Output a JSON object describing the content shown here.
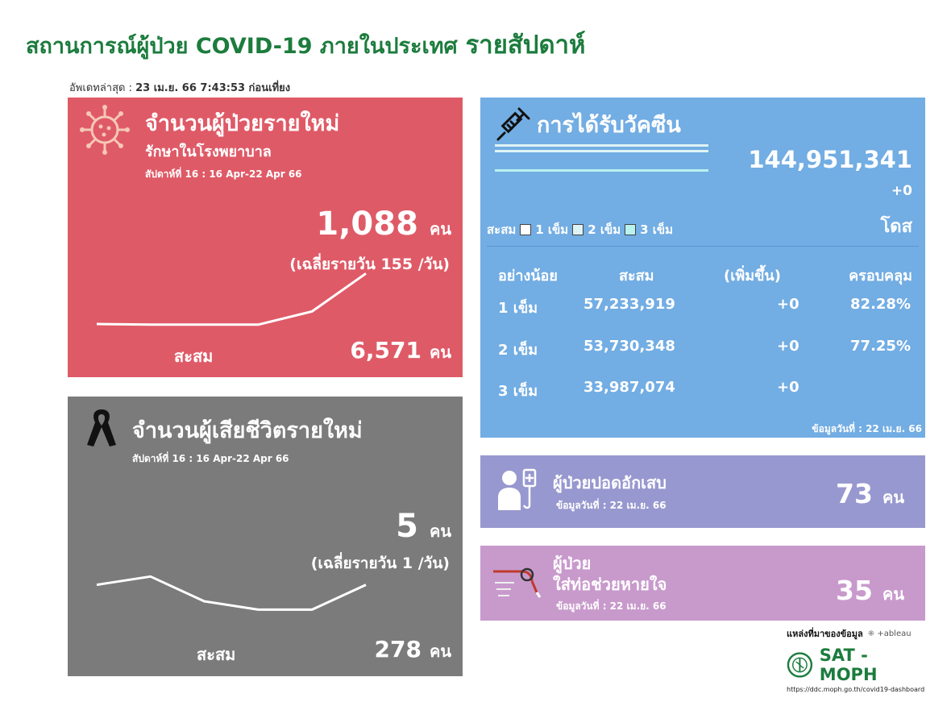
{
  "header": {
    "title": "สถานการณ์ผู้ป่วย COVID-19 ภายในประเทศ",
    "title_suffix": "รายสัปดาห์",
    "updated_label": "อัพเดทล่าสุด :",
    "updated_value": "23 เม.ย. 66 7:43:53 ก่อนเที่ยง"
  },
  "hospital": {
    "title": "จำนวนผู้ป่วยรายใหม่",
    "subtitle": "รักษาในโรงพยาบาล",
    "week": "สัปดาห์ที่ 16 : 16 Apr-22 Apr 66",
    "count": "1,088",
    "unit": "คน",
    "daily_avg": "(เฉลี่ยรายวัน 155 /วัน)",
    "cumulative_label": "สะสม",
    "cumulative": "6,571",
    "cumulative_unit": "คน",
    "icon": "virus-icon",
    "color": "#df5a67"
  },
  "deaths": {
    "title": "จำนวนผู้เสียชีวิตรายใหม่",
    "week": "สัปดาห์ที่  16 : 16 Apr-22 Apr 66",
    "count": "5",
    "unit": "คน",
    "daily_avg": "(เฉลี่ยรายวัน 1 /วัน)",
    "cumulative_label": "สะสม",
    "cumulative": "278",
    "cumulative_unit": "คน",
    "icon": "mourning-ribbon-icon",
    "color": "#7b7b7b"
  },
  "vaccine": {
    "title": "การได้รับวัคซีน",
    "total": "144,951,341",
    "increase": "+0",
    "unit": "โดส",
    "legend_label": "สะสม",
    "legend": [
      {
        "label": "1 เข็ม",
        "color": "#ffffff"
      },
      {
        "label": "2 เข็ม",
        "color": "#dff3f5"
      },
      {
        "label": "3 เข็ม",
        "color": "#b9f2ee"
      }
    ],
    "columns": [
      "อย่างน้อย",
      "สะสม",
      "(เพิ่มขึ้น)",
      "ครอบคลุม"
    ],
    "rows": [
      {
        "dose": "1 เข็ม",
        "total": "57,233,919",
        "increase": "+0",
        "coverage": "82.28%"
      },
      {
        "dose": "2 เข็ม",
        "total": "53,730,348",
        "increase": "+0",
        "coverage": "77.25%"
      },
      {
        "dose": "3 เข็ม",
        "total": "33,987,074",
        "increase": "+0",
        "coverage": ""
      }
    ],
    "note": "ข้อมูลวันที่ : 22 เม.ย. 66",
    "icon": "syringe-icon",
    "color": "#72ade3"
  },
  "pneumonia": {
    "title": "ผู้ป่วยปอดอักเสบ",
    "date": "ข้อมูลวันที่ : 22 เม.ย. 66",
    "count": "73",
    "unit": "คน",
    "icon": "patient-iv-icon",
    "color": "#9898d0"
  },
  "ventilator": {
    "title_line1": "ผู้ป่วย",
    "title_line2": "ใส่ท่อช่วยหายใจ",
    "date": "ข้อมูลวันที่ : 22 เม.ย. 66",
    "count": "35",
    "unit": "คน",
    "icon": "ventilator-tube-icon",
    "color": "#c89acc"
  },
  "source": {
    "label": "แหล่งที่มาของข้อมูล",
    "tableau": "+ableau",
    "org": "SAT - MOPH",
    "url": "https://ddc.moph.go.th/covid19-dashboard"
  },
  "chart_data": [
    {
      "type": "line",
      "name": "hospital-weekly-trend",
      "x": [
        1,
        2,
        3,
        4,
        5,
        6
      ],
      "values": [
        22,
        20,
        20,
        20,
        60,
        175
      ],
      "ylim": [
        0,
        200
      ]
    },
    {
      "type": "line",
      "name": "deaths-weekly-trend",
      "x": [
        1,
        2,
        3,
        4,
        5,
        6
      ],
      "values": [
        5,
        6,
        3,
        2,
        2,
        5
      ],
      "ylim": [
        0,
        7
      ]
    }
  ]
}
